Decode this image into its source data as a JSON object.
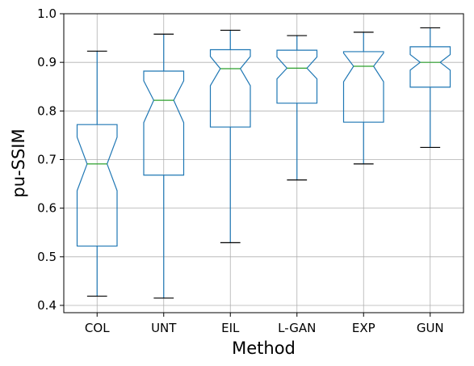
{
  "chart_data": {
    "type": "boxplot",
    "notched": true,
    "title": "",
    "xlabel": "Method",
    "ylabel": "pu-SSIM",
    "ylim": [
      0.385,
      1.0
    ],
    "yticks": [
      0.4,
      0.5,
      0.6,
      0.7,
      0.8,
      0.9,
      1.0
    ],
    "ytick_labels": [
      "0.4",
      "0.5",
      "0.6",
      "0.7",
      "0.8",
      "0.9",
      "1.0"
    ],
    "grid": true,
    "categories": [
      "COL",
      "UNT",
      "EIL",
      "L-GAN",
      "EXP",
      "GUN"
    ],
    "boxes": [
      {
        "min": 0.419,
        "q1": 0.522,
        "median": 0.691,
        "q3": 0.772,
        "max": 0.923,
        "notch_low": 0.636,
        "notch_high": 0.746
      },
      {
        "min": 0.415,
        "q1": 0.668,
        "median": 0.822,
        "q3": 0.882,
        "max": 0.958,
        "notch_low": 0.776,
        "notch_high": 0.862
      },
      {
        "min": 0.529,
        "q1": 0.767,
        "median": 0.887,
        "q3": 0.926,
        "max": 0.966,
        "notch_low": 0.852,
        "notch_high": 0.912
      },
      {
        "min": 0.658,
        "q1": 0.816,
        "median": 0.888,
        "q3": 0.925,
        "max": 0.955,
        "notch_low": 0.866,
        "notch_high": 0.911
      },
      {
        "min": 0.691,
        "q1": 0.777,
        "median": 0.892,
        "q3": 0.922,
        "max": 0.962,
        "notch_low": 0.86,
        "notch_high": 0.919
      },
      {
        "min": 0.725,
        "q1": 0.849,
        "median": 0.9,
        "q3": 0.932,
        "max": 0.971,
        "notch_low": 0.884,
        "notch_high": 0.916
      }
    ],
    "colors": {
      "box": "#1f77b4",
      "median": "#2ca02c",
      "whisker": "#1f77b4",
      "cap": "#000000",
      "grid": "#b0b0b0",
      "axis": "#000000"
    }
  }
}
